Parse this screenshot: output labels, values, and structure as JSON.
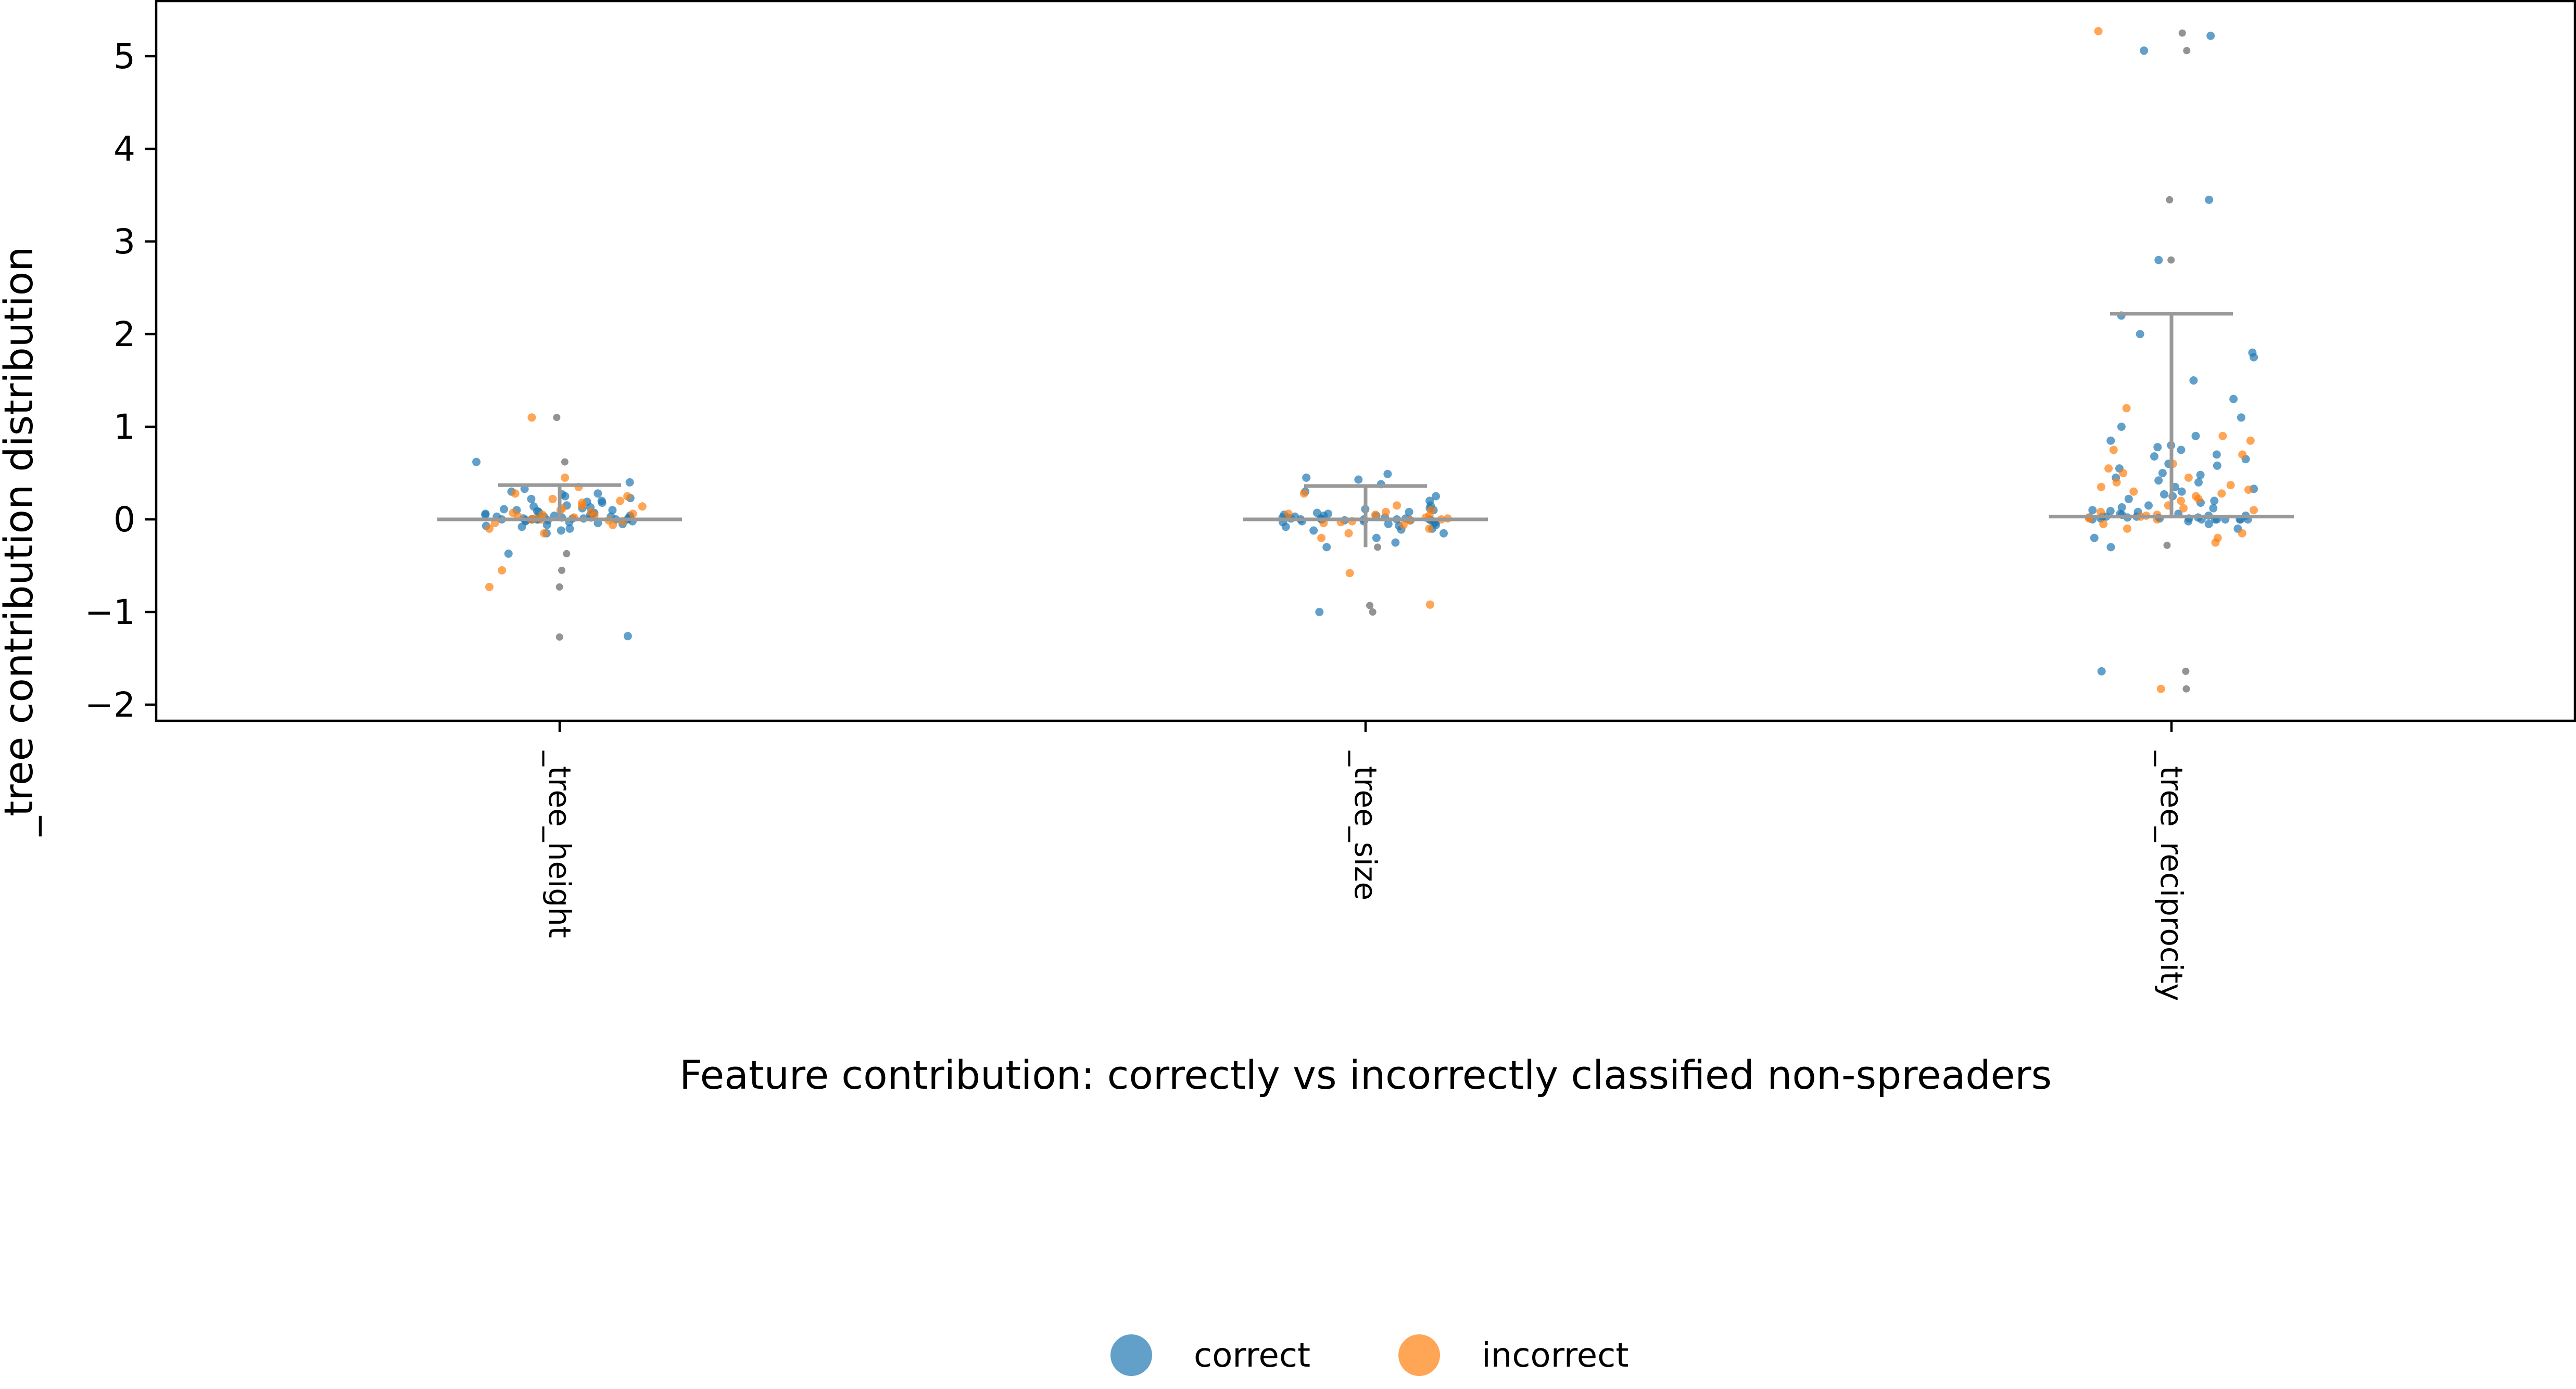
{
  "chart_data": {
    "type": "scatter",
    "subtype": "strip plot with median and upper-whisker lines",
    "xlabel": "Feature contribution: correctly vs incorrectly classified non-spreaders",
    "ylabel": "_tree contribution distribution",
    "categories": [
      "_tree_height",
      "_tree_size",
      "_tree_reciprocity"
    ],
    "ylim": [
      -2.2,
      5.6
    ],
    "yticks": [
      -2,
      -1,
      0,
      1,
      2,
      3,
      4,
      5
    ],
    "ytick_labels": [
      "−2",
      "−1",
      "0",
      "1",
      "2",
      "3",
      "4",
      "5"
    ],
    "grid": false,
    "legend_position": "bottom-center",
    "series": [
      {
        "name": "correct",
        "color": "#1f77b4"
      },
      {
        "name": "incorrect",
        "color": "#ff7f0e"
      }
    ],
    "outlier_color": "#808080",
    "summary_color": "#999999",
    "summary": [
      {
        "category": "_tree_height",
        "median": 0.0,
        "upper": 0.37,
        "lower": 0.0
      },
      {
        "category": "_tree_size",
        "median": 0.0,
        "upper": 0.36,
        "lower": -0.3
      },
      {
        "category": "_tree_reciprocity",
        "median": 0.03,
        "upper": 2.22,
        "lower": 0.03
      }
    ],
    "outliers": [
      {
        "category": "_tree_height",
        "values": [
          1.1,
          -1.27,
          -0.73,
          -0.55,
          -0.37,
          0.62
        ]
      },
      {
        "category": "_tree_size",
        "values": [
          -0.93,
          -1.0,
          -0.3
        ]
      },
      {
        "category": "_tree_reciprocity",
        "values": [
          5.25,
          5.06,
          3.45,
          2.8,
          -1.64,
          -1.83,
          -0.28,
          0.02
        ]
      }
    ],
    "points": [
      {
        "category": "_tree_height",
        "series": "correct",
        "values": [
          0.62,
          0.4,
          0.33,
          0.3,
          0.28,
          0.25,
          0.22,
          0.2,
          0.18,
          0.15,
          0.13,
          0.12,
          0.1,
          0.1,
          0.08,
          0.07,
          0.06,
          0.05,
          0.05,
          0.04,
          0.04,
          0.03,
          0.03,
          0.02,
          0.02,
          0.02,
          0.01,
          0.01,
          0.01,
          0.0,
          0.0,
          0.0,
          0.0,
          0.0,
          0.0,
          -0.01,
          -0.01,
          -0.02,
          -0.02,
          -0.03,
          -0.04,
          -0.05,
          -0.07,
          -0.08,
          -0.1,
          -0.12,
          -0.15,
          -0.37,
          -1.26,
          0.06,
          0.09,
          0.14,
          0.19,
          0.23,
          0.27,
          0.11,
          0.03,
          0.01,
          0.0,
          -0.06
        ]
      },
      {
        "category": "_tree_height",
        "series": "incorrect",
        "values": [
          1.1,
          0.45,
          0.35,
          0.28,
          0.25,
          0.22,
          0.2,
          0.18,
          0.15,
          0.12,
          0.1,
          0.08,
          0.06,
          0.05,
          0.04,
          0.03,
          0.02,
          0.01,
          0.0,
          0.0,
          -0.01,
          -0.02,
          -0.04,
          -0.06,
          -0.1,
          -0.15,
          -0.55,
          -0.73,
          0.14,
          0.07
        ]
      },
      {
        "category": "_tree_size",
        "series": "correct",
        "values": [
          0.49,
          0.45,
          0.43,
          0.38,
          0.3,
          0.25,
          0.2,
          0.15,
          0.12,
          0.1,
          0.08,
          0.06,
          0.05,
          0.04,
          0.03,
          0.02,
          0.02,
          0.01,
          0.01,
          0.0,
          0.0,
          0.0,
          0.0,
          0.0,
          -0.01,
          -0.01,
          -0.02,
          -0.02,
          -0.03,
          -0.04,
          -0.05,
          -0.06,
          -0.08,
          -0.1,
          -0.12,
          -0.15,
          -0.2,
          -0.25,
          -0.3,
          -1.0,
          0.07,
          0.04,
          0.01,
          -0.01,
          -0.07,
          -0.11,
          0.11,
          0.02,
          0.0,
          -0.03
        ]
      },
      {
        "category": "_tree_size",
        "series": "incorrect",
        "values": [
          0.28,
          0.15,
          0.1,
          0.06,
          0.04,
          0.02,
          0.01,
          0.0,
          -0.01,
          -0.02,
          -0.04,
          -0.06,
          -0.1,
          -0.15,
          -0.2,
          -0.58,
          -0.92,
          0.05,
          -0.03,
          0.08
        ]
      },
      {
        "category": "_tree_reciprocity",
        "series": "correct",
        "values": [
          5.22,
          5.06,
          3.45,
          2.8,
          2.2,
          2.0,
          1.8,
          1.75,
          1.5,
          1.3,
          1.1,
          1.0,
          0.9,
          0.85,
          0.8,
          0.75,
          0.7,
          0.65,
          0.6,
          0.55,
          0.5,
          0.45,
          0.4,
          0.35,
          0.3,
          0.25,
          0.2,
          0.15,
          0.12,
          0.1,
          0.08,
          0.06,
          0.05,
          0.04,
          0.03,
          0.02,
          0.02,
          0.01,
          0.01,
          0.0,
          0.0,
          0.0,
          0.0,
          0.0,
          0.0,
          0.0,
          0.0,
          -0.02,
          -0.05,
          -0.1,
          -0.2,
          -0.3,
          -1.64,
          0.03,
          0.03,
          0.02,
          0.01,
          0.04,
          0.06,
          0.09,
          0.13,
          0.18,
          0.22,
          0.27,
          0.33,
          0.42,
          0.48,
          0.58,
          0.68,
          0.78
        ]
      },
      {
        "category": "_tree_reciprocity",
        "series": "incorrect",
        "values": [
          5.27,
          1.2,
          0.9,
          0.85,
          0.75,
          0.7,
          0.6,
          0.55,
          0.5,
          0.45,
          0.4,
          0.35,
          0.3,
          0.25,
          0.2,
          0.15,
          0.1,
          0.08,
          0.05,
          0.03,
          0.02,
          0.01,
          0.0,
          -0.05,
          -0.1,
          -0.15,
          -0.2,
          -0.25,
          -1.83,
          0.37,
          0.32,
          0.28,
          0.22,
          0.12,
          0.04
        ]
      }
    ]
  }
}
